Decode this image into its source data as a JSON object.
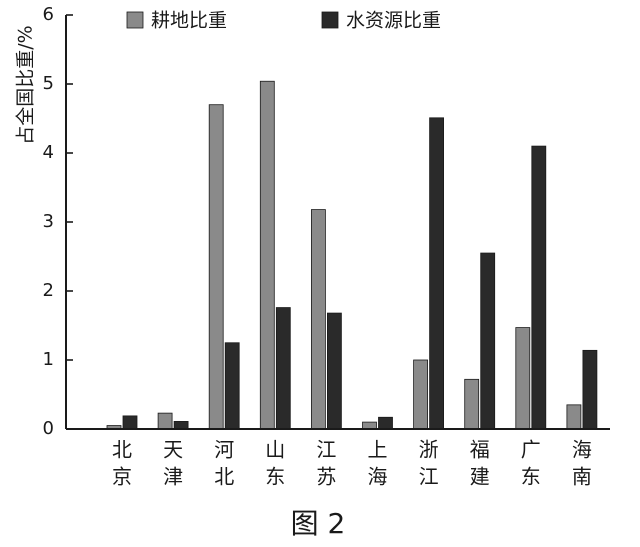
{
  "chart_data": {
    "type": "bar",
    "ylabel": "占全国比重/%",
    "ylim": [
      0,
      6
    ],
    "yticks": [
      "0",
      "1",
      "2",
      "3",
      "4",
      "5",
      "6"
    ],
    "grid": false,
    "legend_position": "top",
    "categories": [
      {
        "line1": "北",
        "line2": "京"
      },
      {
        "line1": "天",
        "line2": "津"
      },
      {
        "line1": "河",
        "line2": "北"
      },
      {
        "line1": "山",
        "line2": "东"
      },
      {
        "line1": "江",
        "line2": "苏"
      },
      {
        "line1": "上",
        "line2": "海"
      },
      {
        "line1": "浙",
        "line2": "江"
      },
      {
        "line1": "福",
        "line2": "建"
      },
      {
        "line1": "广",
        "line2": "东"
      },
      {
        "line1": "海",
        "line2": "南"
      }
    ],
    "series": [
      {
        "name": "耕地比重",
        "color": "#8a8a8a",
        "values": [
          0.05,
          0.23,
          4.7,
          5.04,
          3.18,
          0.1,
          1.0,
          0.72,
          1.47,
          0.35
        ]
      },
      {
        "name": "水资源比重",
        "color": "#2a2a2a",
        "values": [
          0.19,
          0.11,
          1.25,
          1.76,
          1.68,
          0.17,
          4.51,
          2.55,
          4.1,
          1.14
        ]
      }
    ]
  },
  "caption": "图 2"
}
